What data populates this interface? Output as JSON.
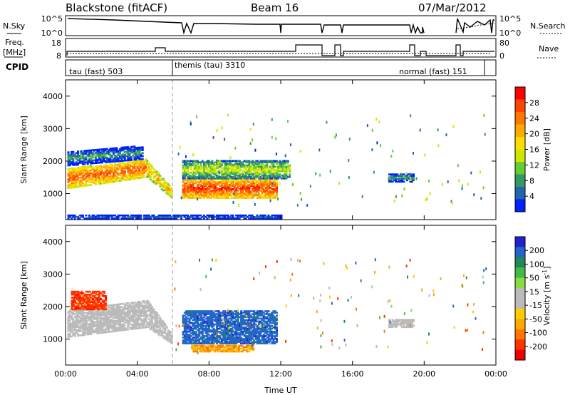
{
  "header": {
    "radar": "Blackstone (fitACF)",
    "beam": "Beam 16",
    "date": "07/Mar/2012"
  },
  "status_panels": {
    "nsky_label": "N.Sky",
    "nsky_ticks": [
      "10^5",
      "10^0"
    ],
    "nsearch_label": "N.Search",
    "nsearch_ticks": [
      "10^5",
      "10^0"
    ],
    "freq_label": "Freq.",
    "freq_unit": "[MHz]",
    "freq_ticks": [
      "18",
      "8"
    ],
    "nave_label": "Nave",
    "nave_ticks": [
      "80",
      "0"
    ],
    "cpid_label": "CPID",
    "cpid_segments": [
      {
        "label": "tau (fast) 503",
        "start_h": 0.0,
        "end_h": 6.0
      },
      {
        "label": "themis (tau) 3310",
        "start_h": 6.0,
        "end_h": 23.3
      },
      {
        "label": "normal (fast) 151",
        "start_h": 23.3,
        "end_h": 24.0
      }
    ]
  },
  "colorbars": {
    "power": {
      "label": "Power [dB]",
      "ticks": [
        "28",
        "24",
        "20",
        "16",
        "12",
        "8",
        "4"
      ],
      "colors": [
        "#ff0000",
        "#ff4400",
        "#ff7700",
        "#ffaa00",
        "#ffdd00",
        "#cce800",
        "#66cc33",
        "#339966",
        "#2266aa",
        "#0022ff"
      ]
    },
    "velocity": {
      "label_main": "Velocity [m s",
      "label_sup": "-1",
      "label_end": "]",
      "ticks": [
        "200",
        "100",
        "50",
        "15",
        "-15",
        "-50",
        "-100",
        "-200"
      ],
      "colors": [
        "#2222cc",
        "#2266cc",
        "#228855",
        "#44bb44",
        "#88dd44",
        "#bbbbbb",
        "#bbbbbb",
        "#ffcc00",
        "#ffaa00",
        "#ff7700",
        "#ff3300",
        "#ee0000"
      ]
    }
  },
  "chart_data": [
    {
      "type": "heatmap",
      "title": "Power",
      "ylabel": "Slant Range [km]",
      "ylim": [
        200,
        4500
      ],
      "xlim_hours": [
        0,
        24
      ],
      "y_ticks": [
        "1000",
        "2000",
        "3000",
        "4000"
      ],
      "x_ticks": [
        "00:00",
        "04:00",
        "08:00",
        "12:00",
        "16:00",
        "20:00",
        "00:00"
      ],
      "colorbar": "power",
      "regions": [
        {
          "t0": 0.1,
          "t1": 4.5,
          "r0_start": 1150,
          "r1_start": 1750,
          "r0_end": 1500,
          "r1_end": 2050,
          "value_db": 26
        },
        {
          "t0": 4.5,
          "t1": 5.9,
          "r0_start": 1500,
          "r1_start": 2000,
          "r0_end": 850,
          "r1_end": 1150,
          "value_db": 22
        },
        {
          "t0": 0.1,
          "t1": 4.3,
          "r0_start": 1850,
          "r1_start": 2300,
          "r0_end": 2050,
          "r1_end": 2450,
          "value_db": 10
        },
        {
          "t0": 6.5,
          "t1": 11.8,
          "r0_start": 850,
          "r1_start": 1450,
          "r0_end": 850,
          "r1_end": 1450,
          "value_db": 28
        },
        {
          "t0": 6.5,
          "t1": 12.5,
          "r0_start": 1450,
          "r1_start": 2000,
          "r0_end": 1450,
          "r1_end": 2000,
          "value_db": 16
        },
        {
          "t0": 18.0,
          "t1": 19.4,
          "r0_start": 1350,
          "r1_start": 1600,
          "r0_end": 1350,
          "r1_end": 1600,
          "value_db": 10
        },
        {
          "t0": 0.1,
          "t1": 12.0,
          "r0_start": 220,
          "r1_start": 330,
          "r0_end": 220,
          "r1_end": 330,
          "value_db": 8
        }
      ]
    },
    {
      "type": "heatmap",
      "title": "Velocity",
      "ylabel": "Slant Range [km]",
      "ylim": [
        200,
        4500
      ],
      "xlim_hours": [
        0,
        24
      ],
      "y_ticks": [
        "1000",
        "2000",
        "3000",
        "4000"
      ],
      "x_ticks": [
        "00:00",
        "04:00",
        "08:00",
        "12:00",
        "16:00",
        "20:00",
        "00:00"
      ],
      "xlabel": "Time UT",
      "colorbar": "velocity",
      "regions": [
        {
          "t0": 0.1,
          "t1": 4.5,
          "r0_start": 1050,
          "r1_start": 1900,
          "r0_end": 1350,
          "r1_end": 2200,
          "value_ms": 0
        },
        {
          "t0": 4.5,
          "t1": 5.9,
          "r0_start": 1350,
          "r1_start": 2200,
          "r0_end": 850,
          "r1_end": 1150,
          "value_ms": 0
        },
        {
          "t0": 0.3,
          "t1": 2.2,
          "r0_start": 1900,
          "r1_start": 2450,
          "r0_end": 1900,
          "r1_end": 2450,
          "value_ms": -150
        },
        {
          "t0": 6.5,
          "t1": 11.8,
          "r0_start": 850,
          "r1_start": 1850,
          "r0_end": 850,
          "r1_end": 1850,
          "value_ms": 150
        },
        {
          "t0": 18.0,
          "t1": 19.4,
          "r0_start": 1350,
          "r1_start": 1600,
          "r0_end": 1350,
          "r1_end": 1600,
          "value_ms": 0
        },
        {
          "t0": 7.0,
          "t1": 10.5,
          "r0_start": 600,
          "r1_start": 800,
          "r0_end": 600,
          "r1_end": 800,
          "value_ms": -80
        }
      ]
    }
  ]
}
